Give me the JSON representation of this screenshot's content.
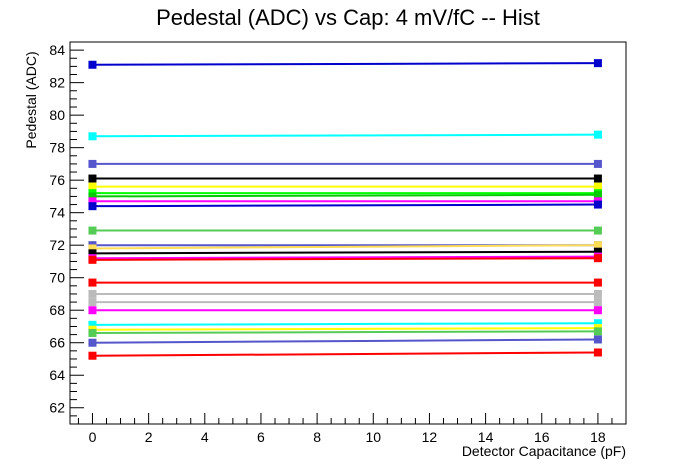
{
  "chart_data": {
    "type": "line",
    "title": "Pedestal (ADC) vs Cap: 4 mV/fC -- Hist",
    "xlabel": "Detector Capacitance (pF)",
    "ylabel": "Pedestal (ADC)",
    "xlim": [
      -0.8,
      19.0
    ],
    "ylim": [
      61.0,
      84.5
    ],
    "x_ticks": [
      0,
      2,
      4,
      6,
      8,
      10,
      12,
      14,
      16,
      18
    ],
    "y_ticks": [
      62,
      64,
      66,
      68,
      70,
      72,
      74,
      76,
      78,
      80,
      82,
      84
    ],
    "x": [
      0,
      18
    ],
    "grid": false,
    "legend": "none",
    "series": [
      {
        "color": "#0000cc",
        "values": [
          83.1,
          83.2
        ]
      },
      {
        "color": "#00ffff",
        "values": [
          78.7,
          78.8
        ]
      },
      {
        "color": "#5555cc",
        "values": [
          77.0,
          77.0
        ]
      },
      {
        "color": "#000000",
        "values": [
          76.1,
          76.1
        ]
      },
      {
        "color": "#ffff00",
        "values": [
          75.6,
          75.6
        ]
      },
      {
        "color": "#00ff00",
        "values": [
          75.2,
          75.2
        ]
      },
      {
        "color": "#00cc00",
        "values": [
          75.0,
          75.1
        ]
      },
      {
        "color": "#ff00ff",
        "values": [
          74.7,
          74.7
        ]
      },
      {
        "color": "#0000cc",
        "values": [
          74.4,
          74.5
        ]
      },
      {
        "color": "#55cc55",
        "values": [
          72.9,
          72.9
        ]
      },
      {
        "color": "#5555cc",
        "values": [
          72.0,
          72.0
        ]
      },
      {
        "color": "#ffdd55",
        "values": [
          71.8,
          72.0
        ]
      },
      {
        "color": "#000000",
        "values": [
          71.5,
          71.6
        ]
      },
      {
        "color": "#ff00ff",
        "values": [
          71.2,
          71.3
        ]
      },
      {
        "color": "#ff0000",
        "values": [
          71.1,
          71.2
        ]
      },
      {
        "color": "#ff0000",
        "values": [
          69.7,
          69.7
        ]
      },
      {
        "color": "#bbbbbb",
        "values": [
          69.0,
          69.0
        ]
      },
      {
        "color": "#bbbbbb",
        "values": [
          68.5,
          68.5
        ]
      },
      {
        "color": "#ff00ff",
        "values": [
          68.0,
          68.0
        ]
      },
      {
        "color": "#00ffff",
        "values": [
          67.1,
          67.2
        ]
      },
      {
        "color": "#ffff00",
        "values": [
          66.8,
          66.9
        ]
      },
      {
        "color": "#55cc55",
        "values": [
          66.6,
          66.7
        ]
      },
      {
        "color": "#5555cc",
        "values": [
          66.0,
          66.2
        ]
      },
      {
        "color": "#ff0000",
        "values": [
          65.2,
          65.4
        ]
      }
    ]
  }
}
